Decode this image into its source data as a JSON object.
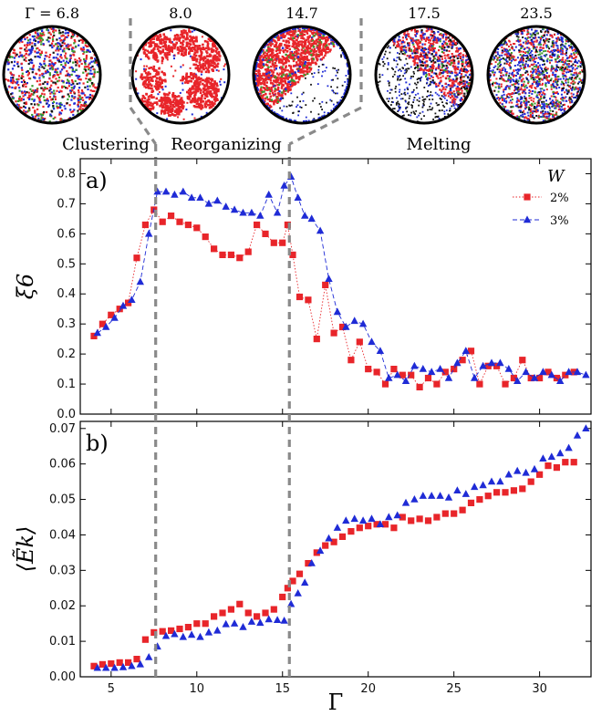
{
  "colors": {
    "red": "#e8252a",
    "blue": "#1f2bd6",
    "green": "#3a9a2a",
    "black": "#111111",
    "guide": "#8a8a8a"
  },
  "snapshots": [
    {
      "label": "Γ = 6.8",
      "pattern": "clustering"
    },
    {
      "label": "8.0",
      "pattern": "reorganizing"
    },
    {
      "label": "14.7",
      "pattern": "crystal"
    },
    {
      "label": "17.5",
      "pattern": "melting"
    },
    {
      "label": "23.5",
      "pattern": "mixed"
    }
  ],
  "regimes": [
    "Clustering",
    "Reorganizing",
    "Melting"
  ],
  "guides": [
    7.6,
    15.4
  ],
  "chart_data": [
    {
      "type": "scatter",
      "panel_label": "a)",
      "ylabel": "ξ6",
      "legend_title": "W",
      "legend_placement": "top-right",
      "xlim": [
        3.2,
        33
      ],
      "ylim": [
        0,
        0.85
      ],
      "xticks": [
        5,
        10,
        15,
        20,
        25,
        30
      ],
      "yticks": [
        0.0,
        0.1,
        0.2,
        0.3,
        0.4,
        0.5,
        0.6,
        0.7,
        0.8
      ],
      "series": [
        {
          "name": "2%",
          "marker": "square",
          "color": "red",
          "x": [
            4.0,
            4.5,
            5.0,
            5.5,
            6.0,
            6.5,
            7.0,
            7.5,
            8.0,
            8.5,
            9.0,
            9.5,
            10.0,
            10.5,
            11.0,
            11.5,
            12.0,
            12.5,
            13.0,
            13.5,
            14.0,
            14.5,
            15.0,
            15.3,
            15.6,
            16.0,
            16.5,
            17.0,
            17.5,
            18.0,
            18.5,
            19.0,
            19.5,
            20.0,
            20.5,
            21.0,
            21.5,
            22.0,
            22.5,
            23.0,
            23.5,
            24.0,
            24.5,
            25.0,
            25.5,
            26.0,
            26.5,
            27.0,
            27.5,
            28.0,
            28.5,
            29.0,
            29.5,
            30.0,
            30.5,
            31.0,
            31.5,
            32.0
          ],
          "y": [
            0.26,
            0.3,
            0.33,
            0.35,
            0.37,
            0.52,
            0.63,
            0.68,
            0.64,
            0.66,
            0.64,
            0.63,
            0.62,
            0.59,
            0.55,
            0.53,
            0.53,
            0.52,
            0.54,
            0.63,
            0.6,
            0.57,
            0.57,
            0.63,
            0.53,
            0.39,
            0.38,
            0.25,
            0.43,
            0.27,
            0.29,
            0.18,
            0.24,
            0.15,
            0.14,
            0.1,
            0.15,
            0.13,
            0.13,
            0.09,
            0.12,
            0.1,
            0.14,
            0.15,
            0.18,
            0.21,
            0.1,
            0.16,
            0.16,
            0.1,
            0.12,
            0.18,
            0.12,
            0.12,
            0.14,
            0.12,
            0.13,
            0.14
          ]
        },
        {
          "name": "3%",
          "marker": "triangle",
          "color": "blue",
          "x": [
            4.2,
            4.7,
            5.2,
            5.7,
            6.2,
            6.7,
            7.2,
            7.7,
            8.2,
            8.7,
            9.2,
            9.7,
            10.2,
            10.7,
            11.2,
            11.7,
            12.2,
            12.7,
            13.2,
            13.7,
            14.2,
            14.7,
            15.1,
            15.5,
            15.9,
            16.3,
            16.7,
            17.2,
            17.7,
            18.2,
            18.7,
            19.2,
            19.7,
            20.2,
            20.7,
            21.2,
            21.7,
            22.2,
            22.7,
            23.2,
            23.7,
            24.2,
            24.7,
            25.2,
            25.7,
            26.2,
            26.7,
            27.2,
            27.7,
            28.2,
            28.7,
            29.2,
            29.7,
            30.2,
            30.7,
            31.2,
            31.7,
            32.2,
            32.7
          ],
          "y": [
            0.27,
            0.29,
            0.32,
            0.36,
            0.38,
            0.44,
            0.6,
            0.74,
            0.74,
            0.73,
            0.74,
            0.72,
            0.72,
            0.7,
            0.71,
            0.69,
            0.68,
            0.67,
            0.67,
            0.66,
            0.73,
            0.67,
            0.76,
            0.79,
            0.72,
            0.66,
            0.65,
            0.61,
            0.45,
            0.34,
            0.29,
            0.31,
            0.3,
            0.24,
            0.21,
            0.12,
            0.13,
            0.11,
            0.16,
            0.15,
            0.14,
            0.15,
            0.12,
            0.17,
            0.21,
            0.12,
            0.16,
            0.17,
            0.17,
            0.15,
            0.11,
            0.14,
            0.12,
            0.14,
            0.13,
            0.11,
            0.14,
            0.14,
            0.13
          ]
        }
      ]
    },
    {
      "type": "scatter",
      "panel_label": "b)",
      "ylabel": "⟨Ẽk⟩",
      "xlabel": "Γ",
      "xlim": [
        3.2,
        33
      ],
      "ylim": [
        0,
        0.072
      ],
      "xticks": [
        5,
        10,
        15,
        20,
        25,
        30
      ],
      "yticks": [
        0.0,
        0.01,
        0.02,
        0.03,
        0.04,
        0.05,
        0.06,
        0.07
      ],
      "series": [
        {
          "name": "2%",
          "marker": "square",
          "color": "red",
          "x": [
            4.0,
            4.5,
            5.0,
            5.5,
            6.0,
            6.5,
            7.0,
            7.5,
            8.0,
            8.5,
            9.0,
            9.5,
            10.0,
            10.5,
            11.0,
            11.5,
            12.0,
            12.5,
            13.0,
            13.5,
            14.0,
            14.5,
            15.0,
            15.3,
            15.6,
            16.0,
            16.5,
            17.0,
            17.5,
            18.0,
            18.5,
            19.0,
            19.5,
            20.0,
            20.5,
            21.0,
            21.5,
            22.0,
            22.5,
            23.0,
            23.5,
            24.0,
            24.5,
            25.0,
            25.5,
            26.0,
            26.5,
            27.0,
            27.5,
            28.0,
            28.5,
            29.0,
            29.5,
            30.0,
            30.5,
            31.0,
            31.5,
            32.0
          ],
          "y": [
            0.003,
            0.0035,
            0.0037,
            0.004,
            0.004,
            0.005,
            0.0105,
            0.0125,
            0.0128,
            0.013,
            0.0135,
            0.014,
            0.015,
            0.015,
            0.017,
            0.018,
            0.019,
            0.0205,
            0.018,
            0.017,
            0.018,
            0.019,
            0.0225,
            0.025,
            0.027,
            0.029,
            0.032,
            0.035,
            0.037,
            0.038,
            0.0395,
            0.041,
            0.042,
            0.0425,
            0.043,
            0.043,
            0.042,
            0.045,
            0.044,
            0.0445,
            0.044,
            0.045,
            0.046,
            0.046,
            0.047,
            0.049,
            0.05,
            0.051,
            0.052,
            0.052,
            0.0525,
            0.053,
            0.055,
            0.057,
            0.0595,
            0.059,
            0.0605,
            0.0605
          ]
        },
        {
          "name": "3%",
          "marker": "triangle",
          "color": "blue",
          "x": [
            4.2,
            4.7,
            5.2,
            5.7,
            6.2,
            6.7,
            7.2,
            7.7,
            8.2,
            8.7,
            9.2,
            9.7,
            10.2,
            10.7,
            11.2,
            11.7,
            12.2,
            12.7,
            13.2,
            13.7,
            14.2,
            14.7,
            15.1,
            15.5,
            15.9,
            16.3,
            16.7,
            17.2,
            17.7,
            18.2,
            18.7,
            19.2,
            19.7,
            20.2,
            20.7,
            21.2,
            21.7,
            22.2,
            22.7,
            23.2,
            23.7,
            24.2,
            24.7,
            25.2,
            25.7,
            26.2,
            26.7,
            27.2,
            27.7,
            28.2,
            28.7,
            29.2,
            29.7,
            30.2,
            30.7,
            31.2,
            31.7,
            32.2,
            32.7
          ],
          "y": [
            0.0025,
            0.0025,
            0.0025,
            0.0027,
            0.003,
            0.0035,
            0.0055,
            0.0085,
            0.0115,
            0.012,
            0.0112,
            0.0118,
            0.0112,
            0.0125,
            0.013,
            0.0148,
            0.015,
            0.014,
            0.0155,
            0.0152,
            0.0162,
            0.016,
            0.0158,
            0.0205,
            0.0235,
            0.0265,
            0.032,
            0.0355,
            0.039,
            0.042,
            0.044,
            0.0445,
            0.044,
            0.0445,
            0.043,
            0.045,
            0.0455,
            0.049,
            0.05,
            0.051,
            0.051,
            0.051,
            0.0505,
            0.0525,
            0.0515,
            0.0535,
            0.054,
            0.055,
            0.055,
            0.057,
            0.058,
            0.0575,
            0.0585,
            0.0615,
            0.062,
            0.063,
            0.0645,
            0.068,
            0.07
          ]
        }
      ]
    }
  ]
}
